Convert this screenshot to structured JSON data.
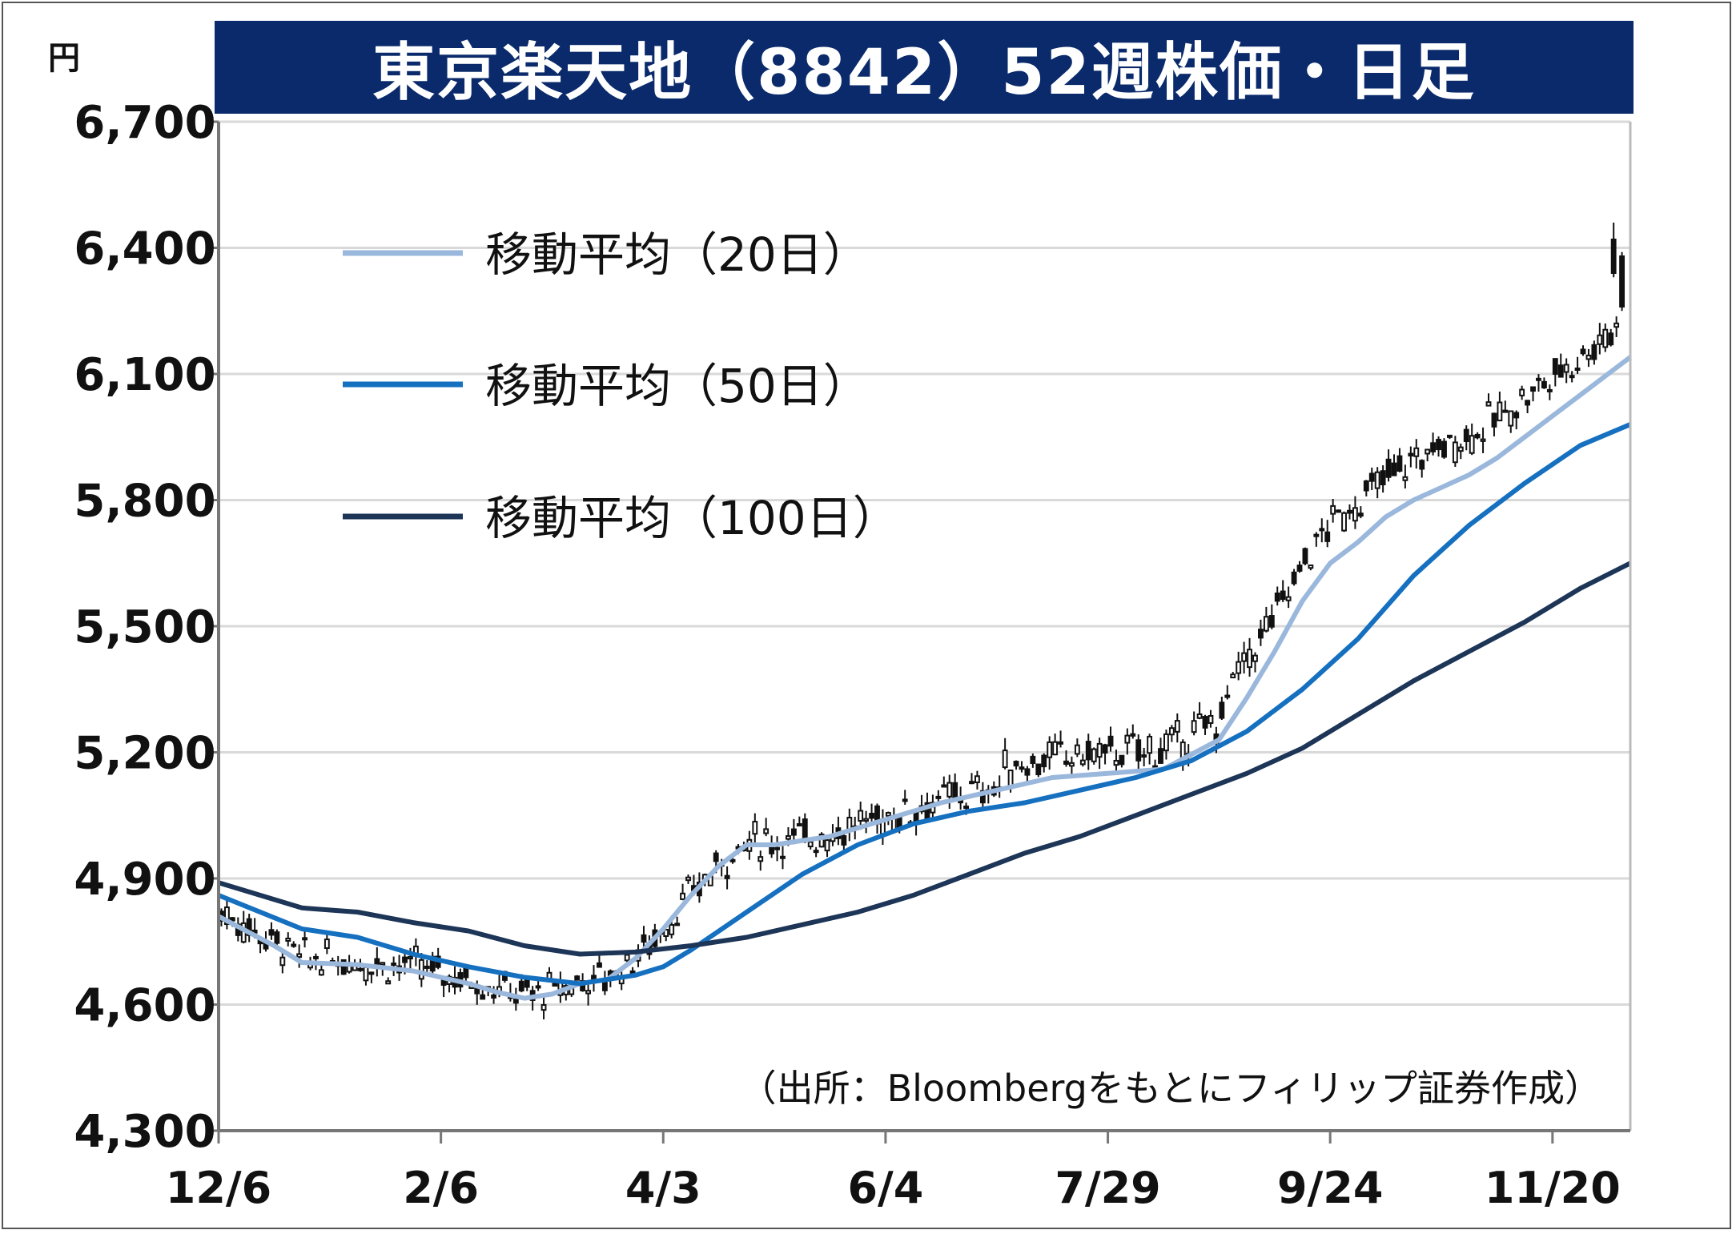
{
  "title": "東京楽天地（8842）52週株価・日足",
  "unit": "円",
  "source_note": "（出所：Bloombergをもとにフィリップ証券作成）",
  "colors": {
    "title_bg": "#0a2a6b",
    "ma20": "#9ab7dc",
    "ma50": "#1670c0",
    "ma100": "#1d3557",
    "candle": "#111111",
    "grid": "#d9d9d9"
  },
  "legend": [
    {
      "label": "移動平均（20日）",
      "color": "#9ab7dc"
    },
    {
      "label": "移動平均（50日）",
      "color": "#1670c0"
    },
    {
      "label": "移動平均（100日）",
      "color": "#1d3557"
    }
  ],
  "chart_data": {
    "type": "line",
    "xlabel": "",
    "ylabel": "円",
    "ylim": [
      4300,
      6700
    ],
    "yticks": [
      4300,
      4600,
      4900,
      5200,
      5500,
      5800,
      6100,
      6400,
      6700
    ],
    "ytick_labels": [
      "4,300",
      "4,600",
      "4,900",
      "5,200",
      "5,500",
      "5,800",
      "6,100",
      "6,400",
      "6,700"
    ],
    "xticks": [
      0,
      40,
      80,
      120,
      160,
      200,
      240
    ],
    "xtick_labels": [
      "12/6",
      "2/6",
      "4/3",
      "6/4",
      "7/29",
      "9/24",
      "11/20"
    ],
    "xlim": [
      0,
      254
    ],
    "grid": true,
    "legend_position": "top-left",
    "series": [
      {
        "name": "移動平均（20日）",
        "points": [
          [
            0,
            4810
          ],
          [
            10,
            4740
          ],
          [
            15,
            4700
          ],
          [
            25,
            4695
          ],
          [
            35,
            4680
          ],
          [
            45,
            4650
          ],
          [
            50,
            4630
          ],
          [
            55,
            4615
          ],
          [
            60,
            4625
          ],
          [
            65,
            4650
          ],
          [
            70,
            4660
          ],
          [
            75,
            4710
          ],
          [
            80,
            4780
          ],
          [
            85,
            4860
          ],
          [
            90,
            4930
          ],
          [
            95,
            4980
          ],
          [
            100,
            4980
          ],
          [
            110,
            5000
          ],
          [
            120,
            5040
          ],
          [
            130,
            5080
          ],
          [
            140,
            5110
          ],
          [
            150,
            5140
          ],
          [
            160,
            5150
          ],
          [
            170,
            5160
          ],
          [
            180,
            5230
          ],
          [
            185,
            5330
          ],
          [
            190,
            5440
          ],
          [
            195,
            5560
          ],
          [
            200,
            5650
          ],
          [
            205,
            5700
          ],
          [
            210,
            5760
          ],
          [
            215,
            5800
          ],
          [
            220,
            5830
          ],
          [
            225,
            5860
          ],
          [
            230,
            5900
          ],
          [
            235,
            5950
          ],
          [
            240,
            6000
          ],
          [
            245,
            6050
          ],
          [
            250,
            6100
          ],
          [
            254,
            6140
          ]
        ]
      },
      {
        "name": "移動平均（50日）",
        "points": [
          [
            0,
            4860
          ],
          [
            15,
            4780
          ],
          [
            25,
            4760
          ],
          [
            35,
            4720
          ],
          [
            45,
            4690
          ],
          [
            55,
            4665
          ],
          [
            65,
            4650
          ],
          [
            75,
            4670
          ],
          [
            80,
            4690
          ],
          [
            85,
            4730
          ],
          [
            95,
            4820
          ],
          [
            105,
            4910
          ],
          [
            115,
            4980
          ],
          [
            125,
            5030
          ],
          [
            135,
            5060
          ],
          [
            145,
            5080
          ],
          [
            155,
            5110
          ],
          [
            165,
            5140
          ],
          [
            175,
            5180
          ],
          [
            185,
            5250
          ],
          [
            195,
            5350
          ],
          [
            205,
            5470
          ],
          [
            215,
            5620
          ],
          [
            225,
            5740
          ],
          [
            235,
            5840
          ],
          [
            245,
            5930
          ],
          [
            254,
            5980
          ]
        ]
      },
      {
        "name": "移動平均（100日）",
        "points": [
          [
            0,
            4890
          ],
          [
            15,
            4830
          ],
          [
            25,
            4820
          ],
          [
            35,
            4795
          ],
          [
            45,
            4775
          ],
          [
            55,
            4740
          ],
          [
            65,
            4720
          ],
          [
            75,
            4725
          ],
          [
            85,
            4740
          ],
          [
            95,
            4760
          ],
          [
            105,
            4790
          ],
          [
            115,
            4820
          ],
          [
            125,
            4860
          ],
          [
            135,
            4910
          ],
          [
            145,
            4960
          ],
          [
            155,
            5000
          ],
          [
            165,
            5050
          ],
          [
            175,
            5100
          ],
          [
            185,
            5150
          ],
          [
            195,
            5210
          ],
          [
            205,
            5290
          ],
          [
            215,
            5370
          ],
          [
            225,
            5440
          ],
          [
            235,
            5510
          ],
          [
            245,
            5590
          ],
          [
            254,
            5650
          ]
        ]
      }
    ]
  }
}
